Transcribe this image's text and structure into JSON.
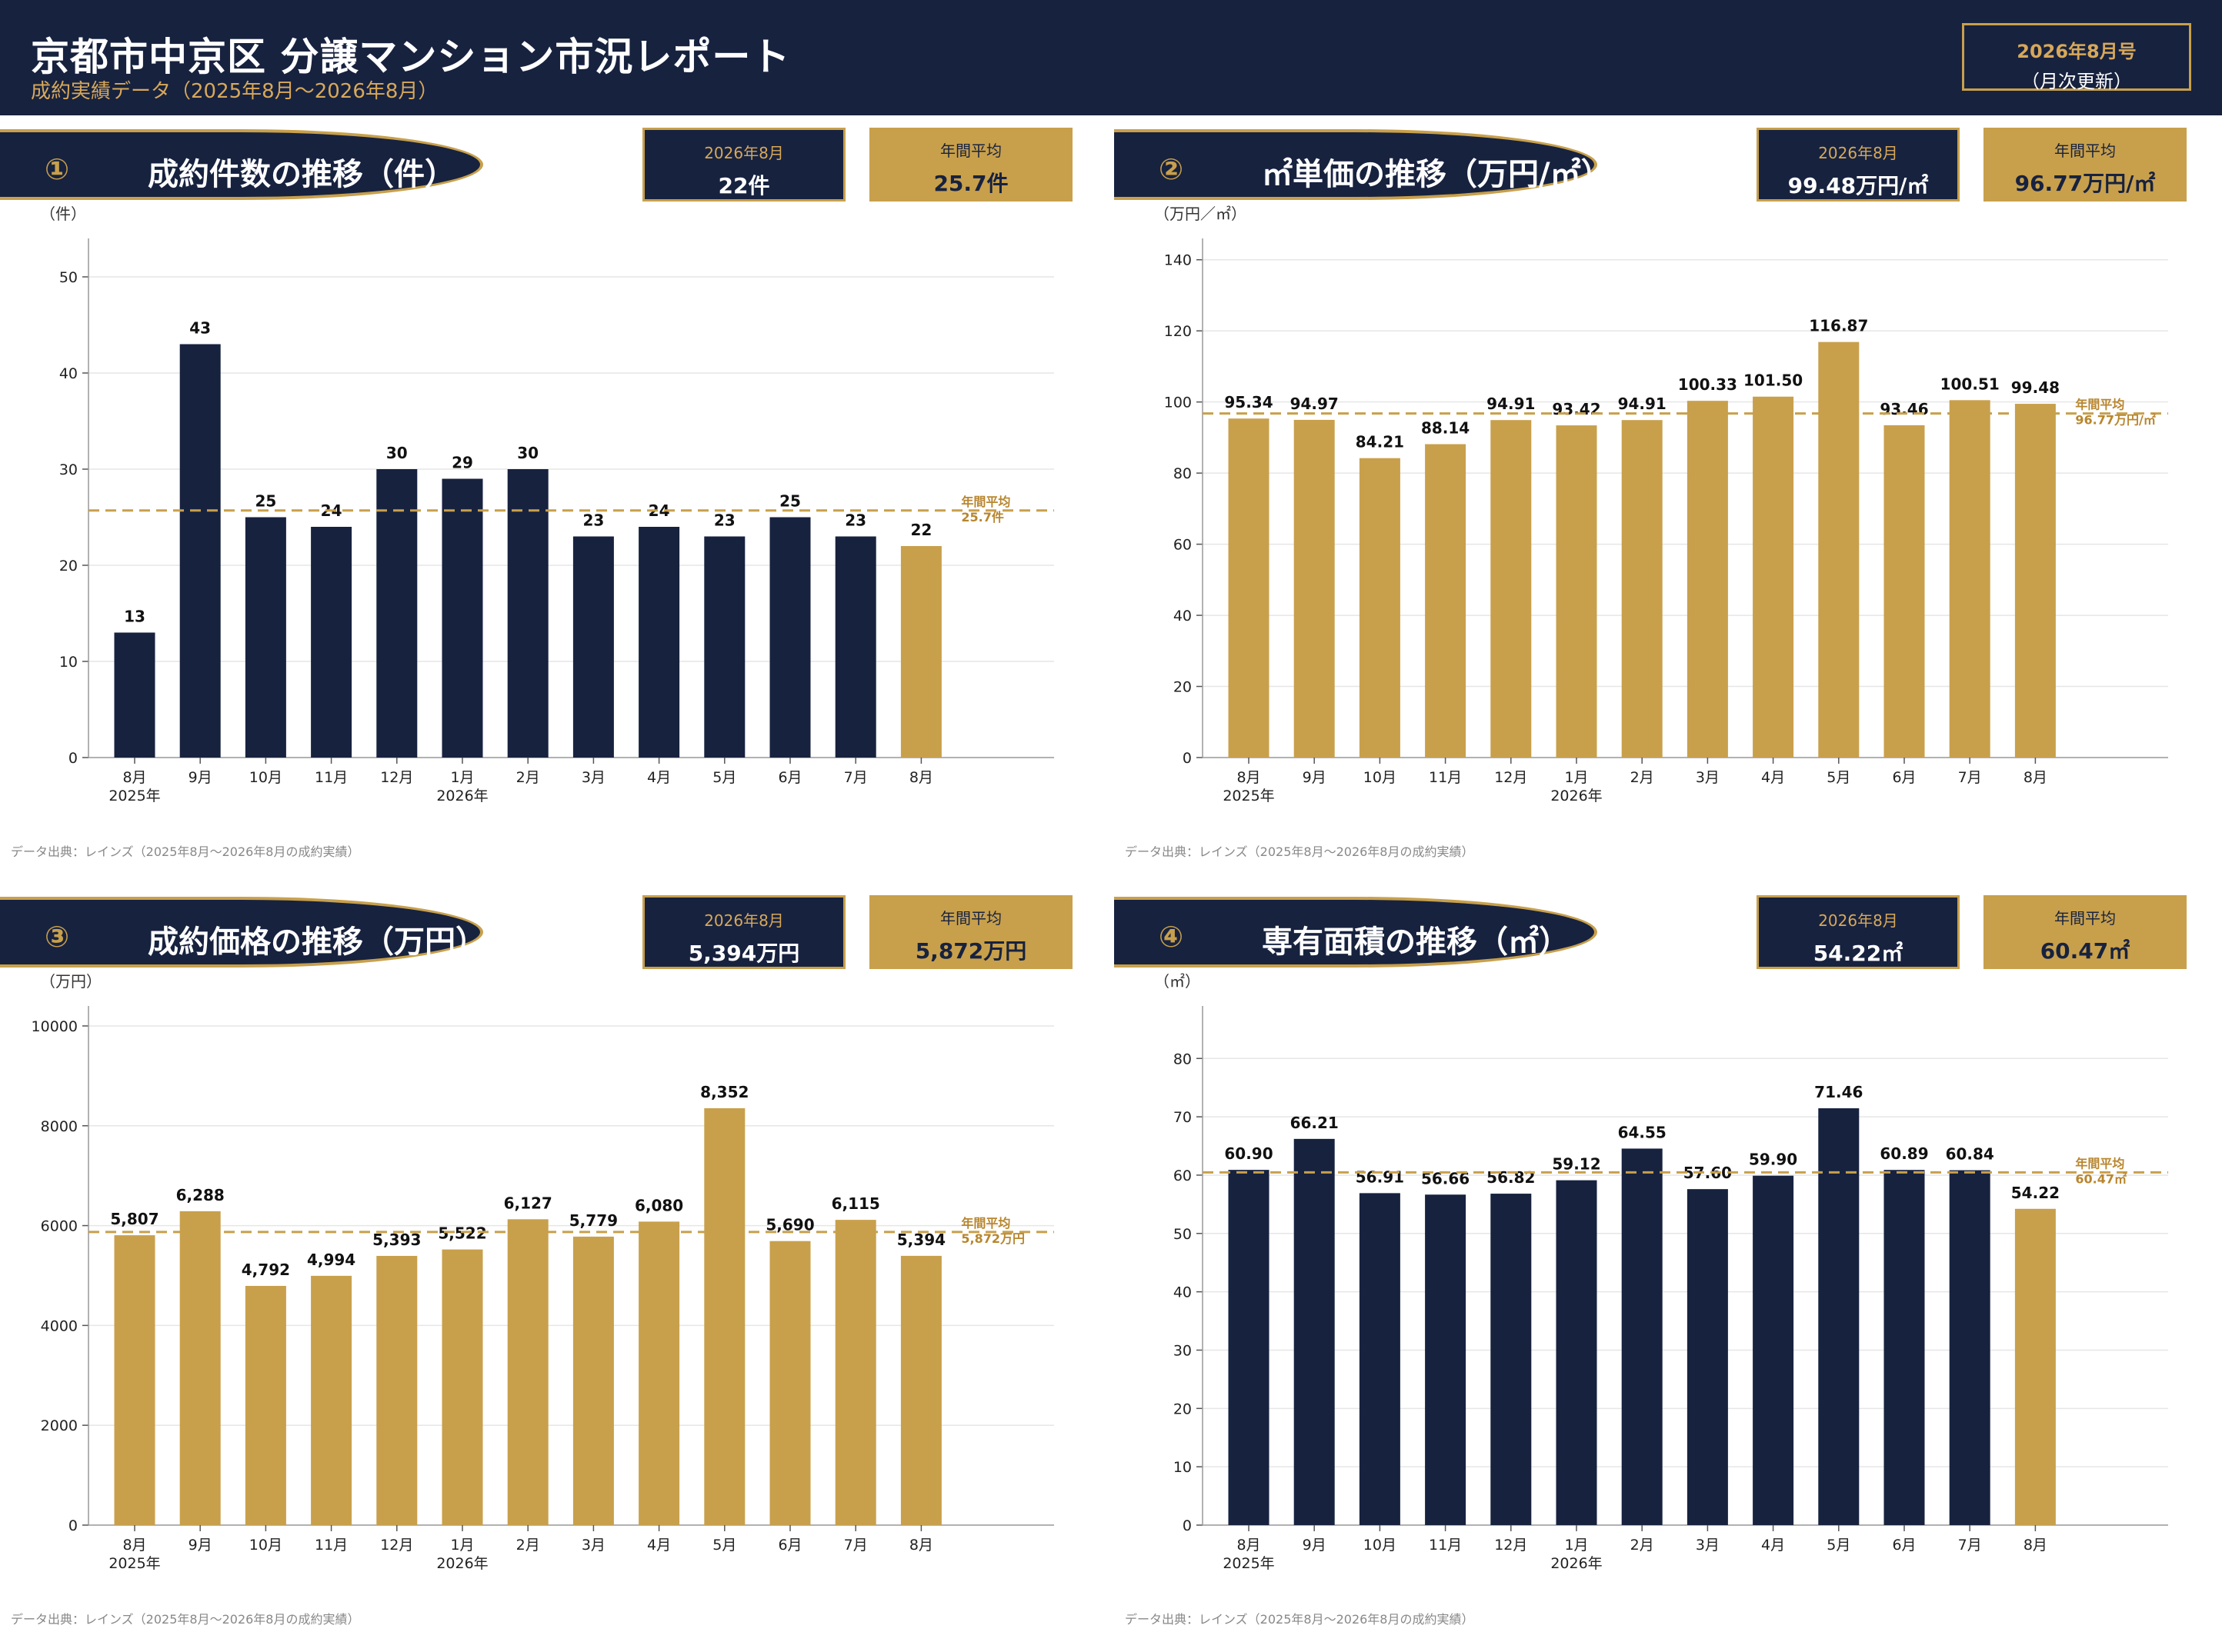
{
  "header": {
    "title": "京都市中京区 分譲マンション市況レポート",
    "subtitle": "成約実績データ（2025年8月〜2026年8月）",
    "issue": "2026年8月号",
    "issue_note": "（月次更新）"
  },
  "colors": {
    "navy": "#17223f",
    "gold": "#c8a04c",
    "avg_line": "#c8a04c",
    "avg_text": "#b8862e"
  },
  "source_note": "データ出典：レインズ（2025年8月〜2026年8月の成約実績）",
  "panels": [
    {
      "num": "①",
      "title": "成約件数の推移（件）",
      "current_label": "2026年8月",
      "current_value": "22件",
      "average_label": "年間平均",
      "average_value": "25.7件",
      "unit": "（件）"
    },
    {
      "num": "②",
      "title": "㎡単価の推移（万円/㎡）",
      "current_label": "2026年8月",
      "current_value": "99.48万円/㎡",
      "average_label": "年間平均",
      "average_value": "96.77万円/㎡",
      "unit": "（万円／㎡）"
    },
    {
      "num": "③",
      "title": "成約価格の推移（万円）",
      "current_label": "2026年8月",
      "current_value": "5,394万円",
      "average_label": "年間平均",
      "average_value": "5,872万円",
      "unit": "（万円）"
    },
    {
      "num": "④",
      "title": "専有面積の推移（㎡）",
      "current_label": "2026年8月",
      "current_value": "54.22㎡",
      "average_label": "年間平均",
      "average_value": "60.47㎡",
      "unit": "（㎡）"
    }
  ],
  "chart_data": [
    {
      "type": "bar",
      "categories": [
        "8月",
        "9月",
        "10月",
        "11月",
        "12月",
        "1月",
        "2月",
        "3月",
        "4月",
        "5月",
        "6月",
        "7月",
        "8月"
      ],
      "year_labels": [
        "2025年",
        "",
        "",
        "",
        "",
        "2026年",
        "",
        "",
        "",
        "",
        "",
        "",
        ""
      ],
      "values": [
        13,
        43,
        25,
        24,
        30,
        29,
        30,
        23,
        24,
        23,
        25,
        23,
        22
      ],
      "value_labels": [
        "13",
        "43",
        "25",
        "24",
        "30",
        "29",
        "30",
        "23",
        "24",
        "23",
        "25",
        "23",
        "22"
      ],
      "highlight_last": true,
      "bar_color": "#17223f",
      "highlight_color": "#c8a04c",
      "ylim": [
        0,
        54
      ],
      "yticks": [
        0,
        10,
        20,
        30,
        40,
        50
      ],
      "average": 25.7,
      "average_label": [
        "年間平均",
        "25.7件"
      ],
      "grid": true
    },
    {
      "type": "bar",
      "categories": [
        "8月",
        "9月",
        "10月",
        "11月",
        "12月",
        "1月",
        "2月",
        "3月",
        "4月",
        "5月",
        "6月",
        "7月",
        "8月"
      ],
      "year_labels": [
        "2025年",
        "",
        "",
        "",
        "",
        "2026年",
        "",
        "",
        "",
        "",
        "",
        "",
        ""
      ],
      "values": [
        95.34,
        94.97,
        84.21,
        88.14,
        94.91,
        93.42,
        94.91,
        100.33,
        101.5,
        116.87,
        93.46,
        100.51,
        99.48
      ],
      "value_labels": [
        "95.34",
        "94.97",
        "84.21",
        "88.14",
        "94.91",
        "93.42",
        "94.91",
        "100.33",
        "101.50",
        "116.87",
        "93.46",
        "100.51",
        "99.48"
      ],
      "highlight_last": false,
      "bar_color": "#c8a04c",
      "highlight_color": "#c8a04c",
      "ylim": [
        0,
        146
      ],
      "yticks": [
        0,
        20,
        40,
        60,
        80,
        100,
        120,
        140
      ],
      "average": 96.77,
      "average_label": [
        "年間平均",
        "96.77万円/㎡"
      ],
      "grid": true
    },
    {
      "type": "bar",
      "categories": [
        "8月",
        "9月",
        "10月",
        "11月",
        "12月",
        "1月",
        "2月",
        "3月",
        "4月",
        "5月",
        "6月",
        "7月",
        "8月"
      ],
      "year_labels": [
        "2025年",
        "",
        "",
        "",
        "",
        "2026年",
        "",
        "",
        "",
        "",
        "",
        "",
        ""
      ],
      "values": [
        5807,
        6288,
        4792,
        4994,
        5393,
        5522,
        6127,
        5779,
        6080,
        8352,
        5690,
        6115,
        5394
      ],
      "value_labels": [
        "5,807",
        "6,288",
        "4,792",
        "4,994",
        "5,393",
        "5,522",
        "6,127",
        "5,779",
        "6,080",
        "8,352",
        "5,690",
        "6,115",
        "5,394"
      ],
      "highlight_last": false,
      "bar_color": "#c8a04c",
      "highlight_color": "#c8a04c",
      "ylim": [
        0,
        10400
      ],
      "yticks": [
        0,
        2000,
        4000,
        6000,
        8000,
        10000
      ],
      "average": 5872,
      "average_label": [
        "年間平均",
        "5,872万円"
      ],
      "grid": true
    },
    {
      "type": "bar",
      "categories": [
        "8月",
        "9月",
        "10月",
        "11月",
        "12月",
        "1月",
        "2月",
        "3月",
        "4月",
        "5月",
        "6月",
        "7月",
        "8月"
      ],
      "year_labels": [
        "2025年",
        "",
        "",
        "",
        "",
        "2026年",
        "",
        "",
        "",
        "",
        "",
        "",
        ""
      ],
      "values": [
        60.9,
        66.21,
        56.91,
        56.66,
        56.82,
        59.12,
        64.55,
        57.6,
        59.9,
        71.46,
        60.89,
        60.84,
        54.22
      ],
      "value_labels": [
        "60.90",
        "66.21",
        "56.91",
        "56.66",
        "56.82",
        "59.12",
        "64.55",
        "57.60",
        "59.90",
        "71.46",
        "60.89",
        "60.84",
        "54.22"
      ],
      "highlight_last": true,
      "bar_color": "#17223f",
      "highlight_color": "#c8a04c",
      "ylim": [
        0,
        89
      ],
      "yticks": [
        0,
        10,
        20,
        30,
        40,
        50,
        60,
        70,
        80
      ],
      "average": 60.47,
      "average_label": [
        "年間平均",
        "60.47㎡"
      ],
      "grid": true
    }
  ]
}
